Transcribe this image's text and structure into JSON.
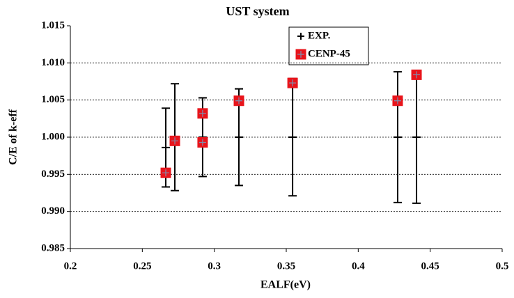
{
  "chart_data": {
    "type": "scatter",
    "title": "UST system",
    "x_label": "EALF(eV)",
    "y_label": "C/E of k-eff",
    "xlim": [
      0.2,
      0.5
    ],
    "xticks": [
      0.2,
      0.25,
      0.3,
      0.35,
      0.4,
      0.45,
      0.5
    ],
    "ylim": [
      0.985,
      1.015
    ],
    "yticks": [
      0.985,
      {
        "value": 0.99,
        "label": "0.990"
      },
      0.995,
      {
        "value": 1,
        "label": "1.000"
      },
      1.005,
      {
        "value": 1.01,
        "label": "1.010"
      },
      1.015
    ],
    "grid": true,
    "legend": "top",
    "series": [
      {
        "name": "EXP.",
        "color": "#000000",
        "marker": "errorbar",
        "x": [
          0.2663,
          0.2726,
          0.2919,
          0.3171,
          0.3544,
          0.4274,
          0.4405
        ],
        "values": [
          0.9986,
          1.0,
          1.0,
          1.0,
          1.0,
          1.0,
          1.0
        ],
        "errors": [
          0.0053,
          0.0072,
          0.0053,
          0.0065,
          0.0079,
          0.0088,
          0.0089
        ]
      },
      {
        "name": "CENP-45",
        "color": "#e8141b",
        "marker": "square",
        "x": [
          0.2663,
          0.2726,
          0.2919,
          0.2919,
          0.3171,
          0.3544,
          0.4274,
          0.4405
        ],
        "values": [
          0.9952,
          0.9995,
          1.0032,
          0.9993,
          1.0049,
          1.0073,
          1.0049,
          1.0084
        ]
      }
    ]
  }
}
